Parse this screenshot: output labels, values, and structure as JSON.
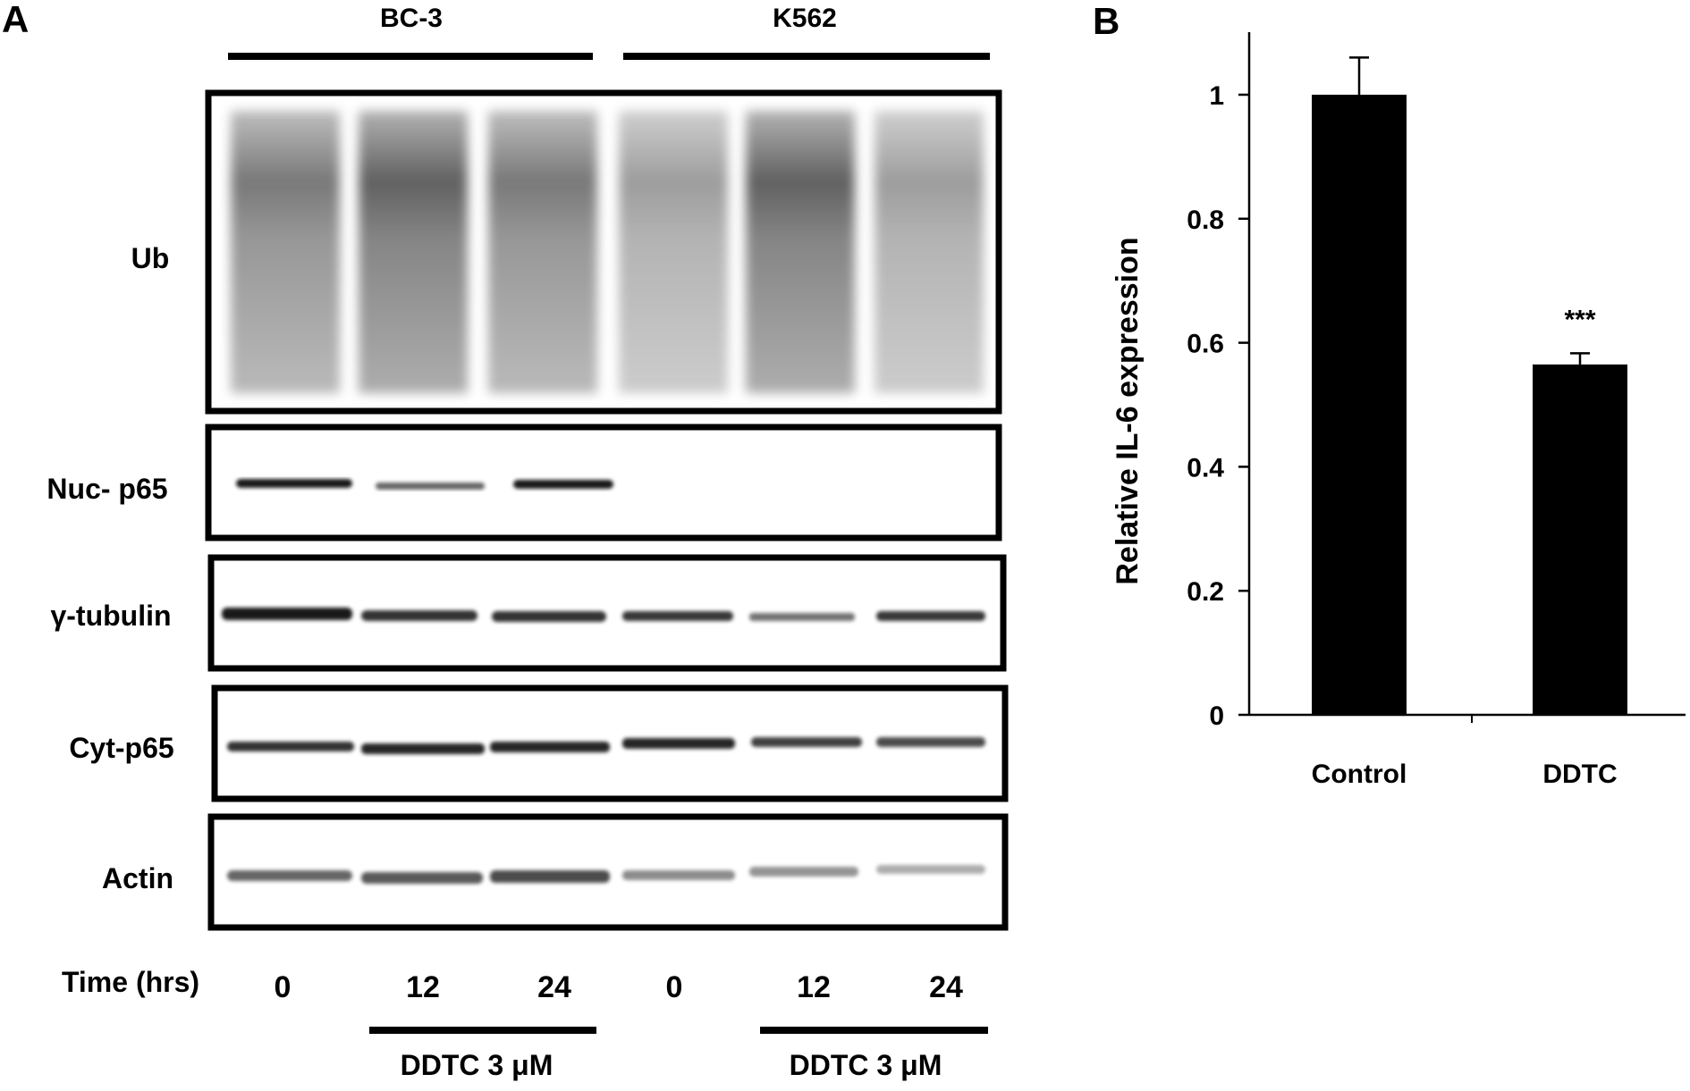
{
  "panel_a": {
    "label": "A",
    "groups": [
      {
        "name": "BC-3",
        "treatment_label": "DDTC 3 μM"
      },
      {
        "name": "K562",
        "treatment_label": "DDTC 3 μM"
      }
    ],
    "rows": [
      {
        "label": "Ub"
      },
      {
        "label": "Nuc- p65"
      },
      {
        "label": "γ-tubulin"
      },
      {
        "label": "Cyt-p65"
      },
      {
        "label": "Actin"
      }
    ],
    "time_label": "Time (hrs)",
    "times": [
      "0",
      "12",
      "24",
      "0",
      "12",
      "24"
    ]
  },
  "panel_b": {
    "label": "B",
    "chart_data": {
      "type": "bar",
      "categories": [
        "Control",
        "DDTC"
      ],
      "values": [
        1.0,
        0.565
      ],
      "errors": [
        0.06,
        0.018
      ],
      "annotations": [
        "",
        "***"
      ],
      "title": "",
      "xlabel": "",
      "ylabel": "Relative IL-6 expression",
      "ylim": [
        0,
        1.1
      ],
      "yticks": [
        0,
        0.2,
        0.4,
        0.6,
        0.8,
        1
      ],
      "ytick_labels": [
        "0",
        "0.2",
        "0.4",
        "0.6",
        "0.8",
        "1"
      ],
      "bar_color": "#000000",
      "grid": false,
      "legend": "none"
    }
  }
}
